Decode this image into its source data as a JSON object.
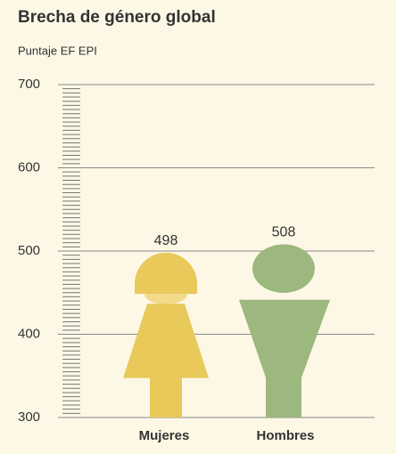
{
  "chart_data": {
    "type": "pictogram",
    "title": "Brecha de género global",
    "subtitle": "Puntaje EF EPI",
    "categories": [
      "Mujeres",
      "Hombres"
    ],
    "values": [
      498,
      508
    ],
    "colors": [
      "#e8c95a",
      "#9cb87e"
    ],
    "ylim": [
      300,
      700
    ],
    "yticks": [
      300,
      400,
      500,
      600,
      700
    ],
    "grid": true
  }
}
